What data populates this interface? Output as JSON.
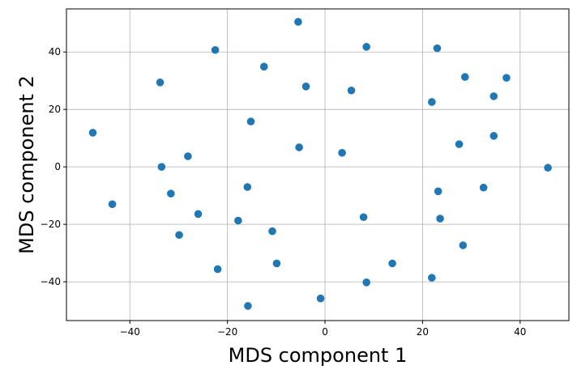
{
  "chart_data": {
    "type": "scatter",
    "xlabel": "MDS component 1",
    "ylabel": "MDS component 2",
    "xlim": [
      -53,
      50
    ],
    "ylim": [
      -53.5,
      55
    ],
    "xticks": [
      -40,
      -20,
      0,
      20,
      40
    ],
    "yticks": [
      -40,
      -20,
      0,
      20,
      40
    ],
    "grid": true,
    "marker_color": "#1f77b4",
    "points": [
      {
        "x": -5.5,
        "y": 50.5
      },
      {
        "x": 8.5,
        "y": 41.8
      },
      {
        "x": 23.0,
        "y": 41.3
      },
      {
        "x": -22.5,
        "y": 40.7
      },
      {
        "x": -12.5,
        "y": 34.9
      },
      {
        "x": 28.7,
        "y": 31.3
      },
      {
        "x": 37.2,
        "y": 31.0
      },
      {
        "x": -33.8,
        "y": 29.4
      },
      {
        "x": -3.9,
        "y": 28.0
      },
      {
        "x": 5.4,
        "y": 26.6
      },
      {
        "x": 34.6,
        "y": 24.6
      },
      {
        "x": 21.9,
        "y": 22.6
      },
      {
        "x": -15.2,
        "y": 15.8
      },
      {
        "x": -47.6,
        "y": 11.9
      },
      {
        "x": 34.6,
        "y": 10.8
      },
      {
        "x": 27.5,
        "y": 7.9
      },
      {
        "x": -5.3,
        "y": 6.8
      },
      {
        "x": 3.5,
        "y": 4.9
      },
      {
        "x": -28.1,
        "y": 3.7
      },
      {
        "x": -33.5,
        "y": 0.0
      },
      {
        "x": 45.7,
        "y": -0.3
      },
      {
        "x": -15.9,
        "y": -7.0
      },
      {
        "x": 32.5,
        "y": -7.2
      },
      {
        "x": 23.2,
        "y": -8.5
      },
      {
        "x": -31.6,
        "y": -9.3
      },
      {
        "x": -43.6,
        "y": -13.0
      },
      {
        "x": -26.0,
        "y": -16.4
      },
      {
        "x": 7.9,
        "y": -17.5
      },
      {
        "x": 23.6,
        "y": -18.0
      },
      {
        "x": -17.8,
        "y": -18.7
      },
      {
        "x": -10.8,
        "y": -22.4
      },
      {
        "x": -29.9,
        "y": -23.7
      },
      {
        "x": 28.3,
        "y": -27.3
      },
      {
        "x": -9.9,
        "y": -33.6
      },
      {
        "x": 13.8,
        "y": -33.6
      },
      {
        "x": -22.0,
        "y": -35.6
      },
      {
        "x": 21.9,
        "y": -38.6
      },
      {
        "x": 8.5,
        "y": -40.2
      },
      {
        "x": -0.9,
        "y": -45.8
      },
      {
        "x": -15.8,
        "y": -48.4
      }
    ]
  }
}
